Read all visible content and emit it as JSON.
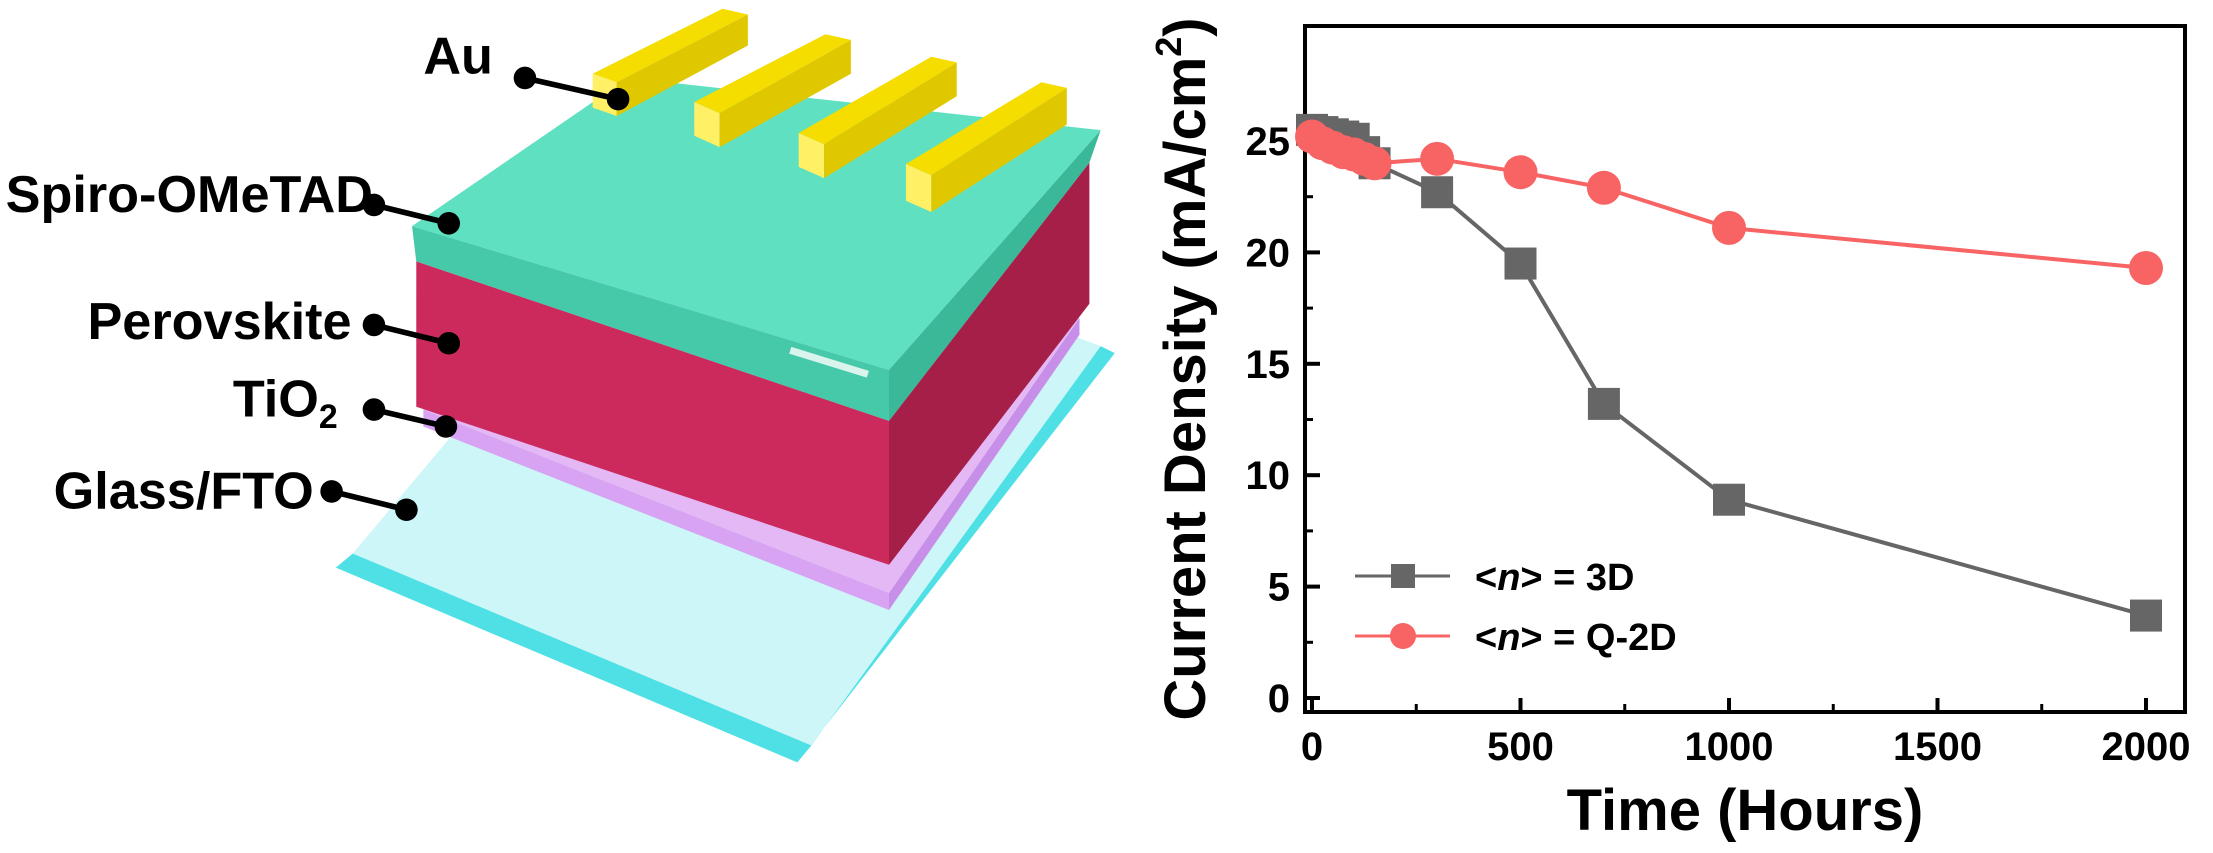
{
  "diagram": {
    "labels": {
      "au": "Au",
      "spiro": "Spiro-OMeTAD",
      "perovskite": "Perovskite",
      "tio2_main": "TiO",
      "tio2_sub": "2",
      "glass": "Glass/FTO"
    },
    "colors": {
      "au": "#f2dc00",
      "spiro": "#3fd1b0",
      "perovskite": "#c2214f",
      "tio2": "#d59bf0",
      "glass": "#8fe8ec"
    }
  },
  "chart_data": {
    "type": "line",
    "title": "",
    "xlabel": "Time (Hours)",
    "ylabel": "Current Density (mA/cm",
    "ylabel_sup": "2",
    "ylabel_close": ")",
    "xlim": [
      0,
      2100
    ],
    "ylim": [
      0,
      26.5
    ],
    "xticks": [
      0,
      500,
      1000,
      1500,
      2000
    ],
    "yticks": [
      0,
      5,
      10,
      15,
      20,
      25
    ],
    "grid": false,
    "legend_position": "bottom-left",
    "series": [
      {
        "name": "<n> = 3D",
        "legend_prefix": "<",
        "legend_italic": "n",
        "legend_suffix": "> = 3D",
        "marker": "square",
        "color": "#666666",
        "x": [
          0,
          25,
          50,
          75,
          100,
          125,
          150,
          300,
          500,
          700,
          1000,
          2000
        ],
        "y": [
          25.5,
          25.4,
          25.3,
          25.2,
          25.1,
          24.5,
          24.0,
          22.7,
          19.5,
          13.2,
          8.9,
          3.7
        ]
      },
      {
        "name": "<n> = Q-2D",
        "legend_prefix": "<",
        "legend_italic": "n",
        "legend_suffix": "> = Q-2D",
        "marker": "circle",
        "color": "#f86464",
        "x": [
          0,
          25,
          50,
          75,
          100,
          125,
          150,
          300,
          500,
          700,
          1000,
          2000
        ],
        "y": [
          25.2,
          24.9,
          24.7,
          24.5,
          24.4,
          24.2,
          24.0,
          24.2,
          23.6,
          22.9,
          21.1,
          19.3
        ]
      }
    ]
  }
}
